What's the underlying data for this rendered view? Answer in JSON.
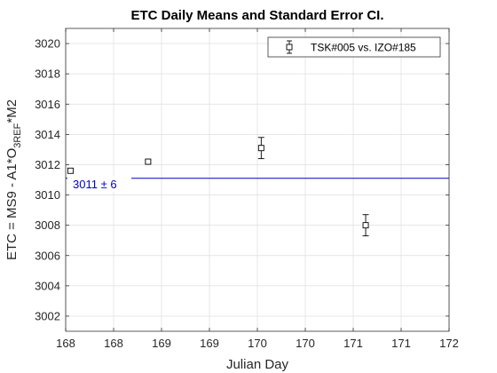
{
  "chart_data": {
    "type": "scatter",
    "title": "ETC Daily Means and Standard Error CI.",
    "xlabel": "Julian Day",
    "ylabel": {
      "prefix": "ETC = MS9 - A1*O",
      "subscript": "3REF",
      "suffix": "*M2"
    },
    "xlim": [
      168,
      172
    ],
    "ylim": [
      3001,
      3021
    ],
    "x_ticks": [
      168,
      168.5,
      169,
      169.5,
      170,
      170.5,
      171,
      171.5,
      172
    ],
    "x_tick_labels": [
      "168",
      "168",
      "169",
      "169",
      "170",
      "170",
      "171",
      "171",
      "172"
    ],
    "y_ticks": [
      3002,
      3004,
      3006,
      3008,
      3010,
      3012,
      3014,
      3016,
      3018,
      3020
    ],
    "y_tick_labels": [
      "3002",
      "3004",
      "3006",
      "3008",
      "3010",
      "3012",
      "3014",
      "3016",
      "3018",
      "3020"
    ],
    "grid": true,
    "legend_position": "top-right",
    "series": [
      {
        "name": "TSK#005 vs. IZO#185",
        "marker": "square",
        "points": [
          {
            "x": 168.05,
            "y": 3011.6,
            "err": 0.15
          },
          {
            "x": 168.86,
            "y": 3012.2,
            "err": 0.1
          },
          {
            "x": 170.04,
            "y": 3013.1,
            "err": 0.7
          },
          {
            "x": 171.13,
            "y": 3008.0,
            "err": 0.7
          }
        ]
      }
    ],
    "reference_line": {
      "y": 3011.1,
      "label": "3011 ± 6",
      "color": "#0000cd"
    },
    "colors": {
      "axis": "#262626",
      "grid": "#dfdfdf",
      "marker": "#000000"
    }
  }
}
